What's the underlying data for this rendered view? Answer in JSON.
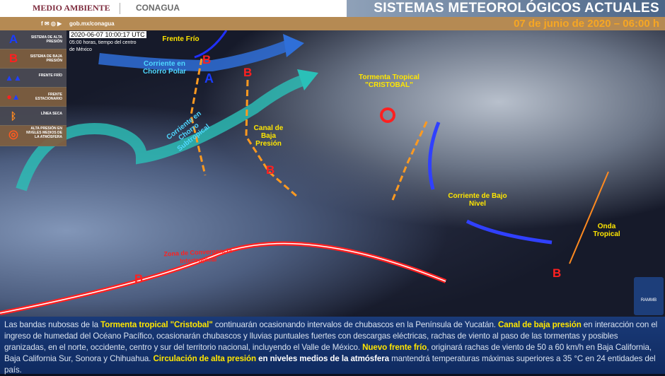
{
  "header": {
    "org1": "MEDIO AMBIENTE",
    "org2": "CONAGUA",
    "social": "gob.mx/conagua",
    "title": "SISTEMAS METEOROLÓGICOS ACTUALES",
    "date": "07 de junio de 2020 – 06:00 h"
  },
  "legend": [
    {
      "symbol": "A",
      "label": "SISTEMA DE ALTA PRESIÓN",
      "color": "#1a3cff"
    },
    {
      "symbol": "B",
      "label": "SISTEMA DE BAJA PRESIÓN",
      "color": "#ff2020"
    },
    {
      "symbol": "",
      "icon": "cold-front-icon",
      "label": "FRENTE FRÍO"
    },
    {
      "symbol": "",
      "icon": "stationary-front-icon",
      "label": "FRENTE ESTACIONARIO"
    },
    {
      "symbol": "",
      "icon": "dry-line-icon",
      "label": "LÍNEA SECA"
    },
    {
      "symbol": "",
      "icon": "mid-level-high-icon",
      "label": "ALTA PRESIÓN EN NIVELES MEDIOS DE LA ATMÓSFERA"
    }
  ],
  "map": {
    "timestamp": "2020-06-07 10:00:17 UTC",
    "subtitle": "05:00 horas, tiempo del centro de México",
    "labels": {
      "frente_frio": "Frente Frío",
      "chorro_polar": "Corriente en Chorro Polar",
      "chorro_subtropical": "Corriente en Chorro Subtropical",
      "canal": "Canal de Baja Presión",
      "tormenta": "Tormenta Tropical \"CRISTOBAL\"",
      "bajo_nivel": "Corriente de Bajo Nivel",
      "onda": "Onda Tropical",
      "zci": "Zona de Convergencia Intertropical"
    },
    "pressure": {
      "A": "A",
      "B": "B"
    },
    "badge": "RAMMB"
  },
  "bulletin": {
    "p1": "Las bandas nubosas de la ",
    "h1": "Tormenta tropical \"Cristobal\"",
    "p2": " continuarán ocasionando intervalos de chubascos en la Península de Yucatán. ",
    "h2": "Canal de baja presión",
    "p3": " en interacción con el ingreso de humedad del Océano Pacífico, ocasionarán chubascos y lluvias puntuales fuertes con descargas eléctricas, rachas de viento al paso de las tormentas y posibles granizadas, en el norte, occidente, centro y sur del territorio nacional, incluyendo el Valle de México. ",
    "h3": "Nuevo frente frío",
    "p4": ", originará rachas de viento de 50 a 60 km/h en Baja California, Baja California Sur, Sonora y Chihuahua. ",
    "h4": "Circulación de alta presión",
    "h5": " en niveles medios de la atmósfera",
    "p5": " mantendrá temperaturas máximas superiores a 35 °C en 24 entidades del país."
  }
}
